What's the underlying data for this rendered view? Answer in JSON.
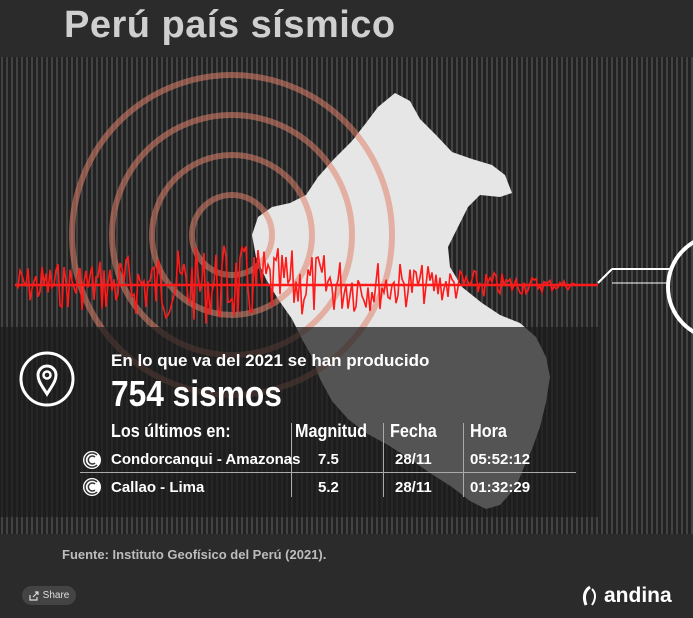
{
  "title": "Perú país sísmico",
  "subtitle": "En lo que va del 2021 se han producido",
  "count": "754 sismos",
  "table": {
    "headers": [
      "Los últimos en:",
      "Magnitud",
      "Fecha",
      "Hora"
    ],
    "rows": [
      {
        "place": "Condorcanqui - Amazonas",
        "magnitude": "7.5",
        "date": "28/11",
        "time": "05:52:12"
      },
      {
        "place": "Callao - Lima",
        "magnitude": "5.2",
        "date": "28/11",
        "time": "01:32:29"
      }
    ]
  },
  "source": "Fuente: Instituto Geofísico del Perú (2021).",
  "share_label": "Share",
  "brand": "andina",
  "colors": {
    "accent": "#ff1a1a",
    "map": "#e6e6e6",
    "ring": "#e0826a"
  },
  "icons": {
    "pin": "location-pin-icon",
    "seismic": "seismic-wave-icon",
    "share": "share-icon",
    "logo": "andina-logo-icon"
  }
}
